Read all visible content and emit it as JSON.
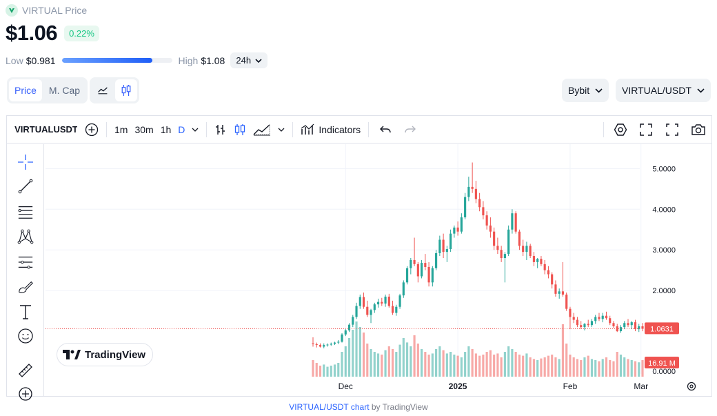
{
  "coin": {
    "name": "VIRTUAL Price",
    "price": "$1.06",
    "change": "0.22%",
    "colors": {
      "up": "#16c784",
      "down": "#ea3943",
      "accent": "#3861fb"
    }
  },
  "range": {
    "low_label": "Low",
    "low_value": "$0.981",
    "high_label": "High",
    "high_value": "$1.08",
    "position_fraction": 0.82,
    "period": "24h"
  },
  "view_toggle": {
    "price_label": "Price",
    "mcap_label": "M. Cap",
    "active": "Price"
  },
  "chart_style": {
    "line_icon": "line-chart-icon",
    "candle_icon": "candlestick-icon",
    "active": "candle"
  },
  "exchange": {
    "label": "Bybit"
  },
  "pair": {
    "label": "VIRTUAL/USDT"
  },
  "tv_toolbar": {
    "symbol": "VIRTUALUSDT",
    "intervals": [
      "1m",
      "30m",
      "1h",
      "D"
    ],
    "active_interval": "D",
    "indicators_label": "Indicators"
  },
  "tv_left_tools": [
    "crosshair-icon",
    "trend-line-icon",
    "fib-levels-icon",
    "pattern-icon",
    "measure-lines-icon",
    "brush-icon",
    "text-icon",
    "emoji-icon",
    "ruler-icon",
    "zoom-in-icon"
  ],
  "tv_logo": "TradingView",
  "attribution": {
    "link": "VIRTUAL/USDT chart",
    "rest": " by TradingView"
  },
  "chart_data": {
    "type": "candlestick",
    "y_ticks": [
      "5.0000",
      "4.0000",
      "3.0000",
      "2.0000",
      "0.0000"
    ],
    "y_tick_values": [
      5,
      4,
      3,
      2,
      0
    ],
    "x_ticks": [
      "Dec",
      "2025",
      "Feb",
      "Mar"
    ],
    "last_price_label": "1.0631",
    "last_price": 1.0631,
    "volume_label": "16.91 M",
    "ylim": [
      0,
      5.6
    ],
    "grid": true,
    "candles": [
      [
        0.7,
        0.85,
        0.62,
        0.68
      ],
      [
        0.68,
        0.72,
        0.6,
        0.66
      ],
      [
        0.66,
        0.7,
        0.6,
        0.62
      ],
      [
        0.62,
        0.7,
        0.58,
        0.66
      ],
      [
        0.66,
        0.7,
        0.62,
        0.67
      ],
      [
        0.67,
        0.72,
        0.64,
        0.69
      ],
      [
        0.69,
        0.74,
        0.66,
        0.72
      ],
      [
        0.72,
        0.78,
        0.68,
        0.74
      ],
      [
        0.74,
        0.95,
        0.72,
        0.92
      ],
      [
        0.92,
        1.05,
        0.88,
        1.02
      ],
      [
        1.02,
        1.2,
        0.98,
        1.16
      ],
      [
        1.16,
        1.4,
        1.1,
        1.35
      ],
      [
        1.35,
        1.7,
        1.3,
        1.62
      ],
      [
        1.62,
        1.9,
        1.55,
        1.84
      ],
      [
        1.84,
        1.95,
        1.55,
        1.6
      ],
      [
        1.6,
        1.75,
        1.35,
        1.4
      ],
      [
        1.4,
        1.55,
        1.2,
        1.52
      ],
      [
        1.52,
        1.7,
        1.45,
        1.66
      ],
      [
        1.66,
        1.8,
        1.58,
        1.72
      ],
      [
        1.72,
        1.82,
        1.62,
        1.68
      ],
      [
        1.68,
        1.9,
        1.6,
        1.85
      ],
      [
        1.85,
        1.92,
        1.58,
        1.62
      ],
      [
        1.62,
        1.75,
        1.4,
        1.45
      ],
      [
        1.45,
        1.65,
        1.38,
        1.6
      ],
      [
        1.6,
        1.92,
        1.55,
        1.88
      ],
      [
        1.88,
        2.25,
        1.82,
        2.2
      ],
      [
        2.2,
        2.6,
        2.15,
        2.55
      ],
      [
        2.55,
        2.8,
        2.4,
        2.75
      ],
      [
        2.75,
        3.3,
        2.6,
        2.65
      ],
      [
        2.65,
        2.7,
        2.2,
        2.35
      ],
      [
        2.35,
        2.75,
        2.3,
        2.68
      ],
      [
        2.68,
        2.9,
        2.5,
        2.58
      ],
      [
        2.58,
        2.7,
        2.1,
        2.2
      ],
      [
        2.2,
        2.6,
        2.1,
        2.55
      ],
      [
        2.55,
        3.0,
        2.5,
        2.92
      ],
      [
        2.92,
        3.35,
        2.85,
        3.25
      ],
      [
        3.25,
        3.4,
        2.8,
        2.95
      ],
      [
        2.95,
        3.1,
        2.7,
        3.02
      ],
      [
        3.02,
        3.5,
        2.95,
        3.4
      ],
      [
        3.4,
        3.6,
        3.3,
        3.55
      ],
      [
        3.55,
        3.7,
        3.35,
        3.45
      ],
      [
        3.45,
        3.9,
        3.4,
        3.8
      ],
      [
        3.8,
        4.4,
        3.75,
        4.3
      ],
      [
        4.3,
        4.8,
        4.2,
        4.55
      ],
      [
        4.55,
        5.15,
        4.4,
        4.5
      ],
      [
        4.5,
        4.7,
        4.15,
        4.25
      ],
      [
        4.25,
        4.4,
        3.95,
        4.05
      ],
      [
        4.05,
        4.2,
        3.75,
        3.85
      ],
      [
        3.85,
        3.95,
        3.5,
        3.6
      ],
      [
        3.6,
        3.8,
        3.3,
        3.45
      ],
      [
        3.45,
        3.55,
        3.0,
        3.1
      ],
      [
        3.1,
        3.3,
        2.9,
        3.0
      ],
      [
        3.0,
        3.1,
        2.7,
        2.8
      ],
      [
        2.8,
        2.95,
        2.2,
        2.9
      ],
      [
        2.9,
        3.6,
        2.85,
        3.5
      ],
      [
        3.5,
        4.0,
        3.4,
        3.9
      ],
      [
        3.9,
        3.95,
        3.4,
        3.45
      ],
      [
        3.45,
        3.5,
        3.0,
        3.1
      ],
      [
        3.1,
        3.25,
        2.85,
        2.95
      ],
      [
        2.95,
        3.2,
        2.75,
        3.1
      ],
      [
        3.1,
        3.15,
        2.8,
        2.85
      ],
      [
        2.85,
        2.95,
        2.6,
        2.7
      ],
      [
        2.7,
        2.8,
        2.55,
        2.78
      ],
      [
        2.78,
        2.85,
        2.6,
        2.65
      ],
      [
        2.65,
        2.75,
        2.4,
        2.5
      ],
      [
        2.5,
        2.6,
        2.3,
        2.4
      ],
      [
        2.4,
        2.45,
        2.05,
        2.15
      ],
      [
        2.15,
        2.25,
        1.85,
        1.92
      ],
      [
        1.92,
        2.05,
        1.8,
        1.98
      ],
      [
        1.98,
        2.7,
        1.85,
        1.9
      ],
      [
        1.9,
        1.95,
        1.5,
        1.55
      ],
      [
        1.55,
        1.6,
        1.05,
        1.35
      ],
      [
        1.35,
        1.45,
        1.2,
        1.28
      ],
      [
        1.28,
        1.35,
        1.1,
        1.15
      ],
      [
        1.15,
        1.25,
        1.05,
        1.1
      ],
      [
        1.1,
        1.2,
        1.02,
        1.18
      ],
      [
        1.18,
        1.28,
        1.1,
        1.15
      ],
      [
        1.15,
        1.3,
        1.1,
        1.25
      ],
      [
        1.25,
        1.4,
        1.18,
        1.35
      ],
      [
        1.35,
        1.45,
        1.25,
        1.3
      ],
      [
        1.3,
        1.45,
        1.22,
        1.38
      ],
      [
        1.38,
        1.48,
        1.28,
        1.32
      ],
      [
        1.32,
        1.38,
        1.15,
        1.2
      ],
      [
        1.2,
        1.25,
        1.08,
        1.12
      ],
      [
        1.12,
        1.18,
        0.98,
        1.0
      ],
      [
        1.0,
        1.15,
        0.96,
        1.1
      ],
      [
        1.1,
        1.25,
        1.05,
        1.2
      ],
      [
        1.2,
        1.3,
        1.1,
        1.15
      ],
      [
        1.15,
        1.25,
        1.05,
        1.22
      ],
      [
        1.22,
        1.28,
        1.0,
        1.05
      ],
      [
        1.05,
        1.18,
        0.98,
        1.12
      ],
      [
        1.12,
        1.2,
        1.0,
        1.06
      ]
    ],
    "volumes": [
      0.3,
      0.25,
      0.2,
      0.22,
      0.18,
      0.2,
      0.22,
      0.25,
      0.45,
      0.55,
      0.7,
      0.85,
      1.0,
      0.9,
      0.8,
      0.6,
      0.5,
      0.45,
      0.42,
      0.4,
      0.48,
      0.55,
      0.5,
      0.45,
      0.58,
      0.7,
      0.62,
      0.55,
      0.75,
      0.6,
      0.5,
      0.45,
      0.4,
      0.42,
      0.5,
      0.55,
      0.48,
      0.42,
      0.45,
      0.4,
      0.38,
      0.35,
      0.45,
      0.55,
      0.5,
      0.42,
      0.38,
      0.4,
      0.45,
      0.48,
      0.4,
      0.42,
      0.35,
      0.45,
      0.55,
      0.5,
      0.45,
      0.4,
      0.38,
      0.42,
      0.35,
      0.32,
      0.3,
      0.33,
      0.35,
      0.38,
      0.4,
      0.35,
      0.32,
      0.95,
      0.6,
      0.4,
      0.35,
      0.32,
      0.3,
      0.35,
      0.38,
      0.32,
      0.3,
      0.28,
      0.32,
      0.35,
      0.3,
      0.28,
      0.45,
      0.4,
      0.35,
      0.32,
      0.3,
      0.28,
      0.26,
      0.3
    ]
  }
}
